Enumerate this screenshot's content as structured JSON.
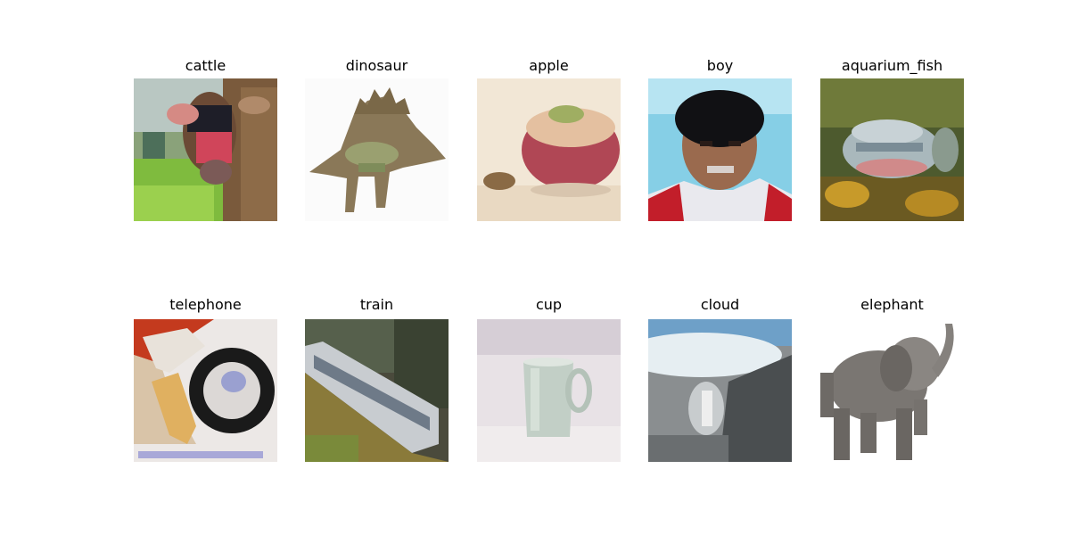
{
  "images": [
    {
      "label": "cattle",
      "icon": "cattle-thumbnail"
    },
    {
      "label": "dinosaur",
      "icon": "dinosaur-thumbnail"
    },
    {
      "label": "apple",
      "icon": "apple-thumbnail"
    },
    {
      "label": "boy",
      "icon": "boy-thumbnail"
    },
    {
      "label": "aquarium_fish",
      "icon": "aquarium-fish-thumbnail"
    },
    {
      "label": "telephone",
      "icon": "telephone-thumbnail"
    },
    {
      "label": "train",
      "icon": "train-thumbnail"
    },
    {
      "label": "cup",
      "icon": "cup-thumbnail"
    },
    {
      "label": "cloud",
      "icon": "cloud-thumbnail"
    },
    {
      "label": "elephant",
      "icon": "elephant-thumbnail"
    }
  ]
}
